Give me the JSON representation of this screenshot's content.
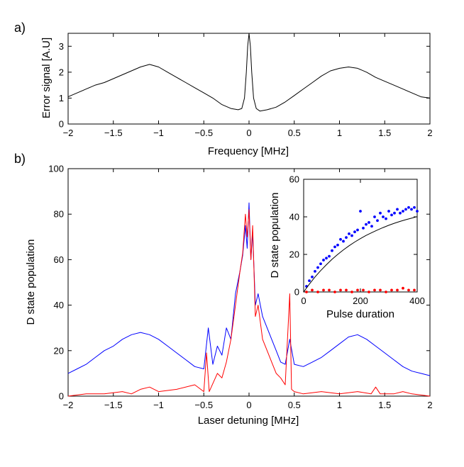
{
  "chart_data": [
    {
      "panel": "a)",
      "type": "line",
      "xlabel": "Frequency [MHz]",
      "ylabel": "Error signal [A.U]",
      "xlim": [
        -2,
        2
      ],
      "ylim": [
        0,
        3.5
      ],
      "xticks": [
        -2,
        -1.5,
        -1,
        -0.5,
        0,
        0.5,
        1,
        1.5,
        2
      ],
      "yticks": [
        0,
        1,
        2,
        3
      ],
      "grid": false,
      "series": [
        {
          "color": "#000000",
          "x": [
            -2.0,
            -1.9,
            -1.8,
            -1.7,
            -1.6,
            -1.5,
            -1.4,
            -1.3,
            -1.2,
            -1.1,
            -1.0,
            -0.9,
            -0.8,
            -0.7,
            -0.6,
            -0.5,
            -0.4,
            -0.3,
            -0.2,
            -0.12,
            -0.08,
            -0.05,
            -0.03,
            -0.015,
            0.0,
            0.015,
            0.03,
            0.05,
            0.08,
            0.12,
            0.2,
            0.3,
            0.4,
            0.5,
            0.6,
            0.7,
            0.8,
            0.9,
            1.0,
            1.1,
            1.2,
            1.3,
            1.4,
            1.5,
            1.6,
            1.7,
            1.8,
            1.9,
            2.0
          ],
          "y": [
            1.05,
            1.2,
            1.35,
            1.5,
            1.6,
            1.75,
            1.9,
            2.05,
            2.2,
            2.3,
            2.2,
            2.0,
            1.8,
            1.6,
            1.4,
            1.2,
            1.0,
            0.75,
            0.6,
            0.55,
            0.6,
            1.0,
            2.0,
            3.0,
            3.5,
            3.0,
            2.0,
            1.0,
            0.6,
            0.5,
            0.55,
            0.65,
            0.85,
            1.1,
            1.35,
            1.6,
            1.85,
            2.05,
            2.15,
            2.2,
            2.15,
            2.0,
            1.8,
            1.65,
            1.5,
            1.35,
            1.2,
            1.05,
            1.0
          ]
        }
      ]
    },
    {
      "panel": "b)",
      "type": "line",
      "xlabel": "Laser detuning [MHz]",
      "ylabel": "D state population",
      "xlim": [
        -2,
        2
      ],
      "ylim": [
        0,
        100
      ],
      "xticks": [
        -2,
        -1.5,
        -1,
        -0.5,
        0,
        0.5,
        1,
        1.5,
        2
      ],
      "yticks": [
        0,
        20,
        40,
        60,
        80,
        100
      ],
      "grid": false,
      "series": [
        {
          "color": "#0000ff",
          "x": [
            -2.0,
            -1.9,
            -1.8,
            -1.7,
            -1.6,
            -1.5,
            -1.4,
            -1.3,
            -1.2,
            -1.1,
            -1.0,
            -0.9,
            -0.8,
            -0.7,
            -0.6,
            -0.5,
            -0.45,
            -0.4,
            -0.35,
            -0.3,
            -0.25,
            -0.2,
            -0.15,
            -0.1,
            -0.07,
            -0.04,
            -0.02,
            0.0,
            0.02,
            0.04,
            0.07,
            0.1,
            0.15,
            0.2,
            0.25,
            0.3,
            0.35,
            0.4,
            0.45,
            0.5,
            0.6,
            0.7,
            0.8,
            0.9,
            1.0,
            1.1,
            1.2,
            1.3,
            1.4,
            1.5,
            1.6,
            1.7,
            1.8,
            1.9,
            2.0
          ],
          "y": [
            10,
            12,
            14,
            17,
            20,
            22,
            25,
            27,
            28,
            27,
            25,
            22,
            19,
            16,
            13,
            12,
            30,
            14,
            22,
            18,
            30,
            25,
            45,
            55,
            62,
            75,
            65,
            85,
            60,
            72,
            40,
            45,
            35,
            30,
            25,
            20,
            15,
            14,
            25,
            14,
            13,
            15,
            17,
            20,
            23,
            26,
            27,
            25,
            22,
            19,
            16,
            13,
            11,
            10,
            9
          ]
        },
        {
          "color": "#ff0000",
          "x": [
            -2.0,
            -1.8,
            -1.6,
            -1.4,
            -1.3,
            -1.2,
            -1.1,
            -1.0,
            -0.8,
            -0.6,
            -0.5,
            -0.47,
            -0.44,
            -0.35,
            -0.3,
            -0.25,
            -0.2,
            -0.15,
            -0.1,
            -0.07,
            -0.04,
            -0.02,
            0.0,
            0.02,
            0.04,
            0.07,
            0.1,
            0.15,
            0.2,
            0.25,
            0.3,
            0.35,
            0.4,
            0.45,
            0.47,
            0.5,
            0.6,
            0.8,
            1.0,
            1.2,
            1.35,
            1.4,
            1.45,
            1.6,
            1.7,
            1.8,
            2.0
          ],
          "y": [
            0,
            1,
            1,
            2,
            1,
            3,
            4,
            2,
            3,
            5,
            2,
            19,
            2,
            10,
            8,
            15,
            25,
            40,
            55,
            63,
            80,
            70,
            82,
            60,
            75,
            35,
            40,
            25,
            20,
            15,
            10,
            8,
            5,
            45,
            3,
            2,
            1,
            2,
            1,
            2,
            1,
            4,
            1,
            1,
            2,
            1,
            0
          ]
        }
      ],
      "inset": {
        "type": "scatter",
        "xlabel": "Pulse duration",
        "ylabel": "D state population",
        "xlim": [
          0,
          400
        ],
        "ylim": [
          0,
          60
        ],
        "xticks": [
          0,
          200,
          400
        ],
        "yticks": [
          0,
          20,
          40,
          60
        ],
        "series": [
          {
            "color": "#0000ff",
            "marker": "dot",
            "x": [
              10,
              20,
              30,
              40,
              50,
              60,
              70,
              80,
              90,
              100,
              110,
              120,
              130,
              140,
              150,
              160,
              170,
              180,
              190,
              200,
              210,
              220,
              230,
              240,
              250,
              260,
              270,
              280,
              290,
              300,
              310,
              320,
              330,
              340,
              350,
              360,
              370,
              380,
              390,
              400
            ],
            "y": [
              3,
              6,
              8,
              11,
              13,
              15,
              17,
              18,
              19,
              22,
              24,
              25,
              28,
              27,
              29,
              31,
              30,
              32,
              33,
              43,
              34,
              36,
              37,
              35,
              40,
              38,
              42,
              40,
              39,
              43,
              41,
              42,
              44,
              42,
              43,
              44,
              45,
              44,
              45,
              43
            ]
          },
          {
            "color": "#000000",
            "marker": "line",
            "x": [
              0,
              20,
              40,
              60,
              80,
              100,
              120,
              140,
              160,
              180,
              200,
              220,
              240,
              260,
              280,
              300,
              320,
              340,
              360,
              380,
              400
            ],
            "y": [
              0,
              4.2,
              8.0,
              11.4,
              14.5,
              17.4,
              20.0,
              22.4,
              24.6,
              26.6,
              28.4,
              30.1,
              31.6,
              33.0,
              34.3,
              35.5,
              36.6,
              37.6,
              38.5,
              39.3,
              40.1
            ]
          },
          {
            "color": "#ff0000",
            "marker": "dot",
            "x": [
              10,
              30,
              50,
              70,
              90,
              110,
              130,
              150,
              170,
              190,
              210,
              230,
              250,
              270,
              290,
              310,
              330,
              350,
              370,
              390
            ],
            "y": [
              0,
              1,
              0,
              1,
              1,
              0,
              1,
              1,
              0,
              1,
              1,
              0,
              1,
              1,
              0,
              1,
              1,
              2,
              1,
              1
            ]
          }
        ]
      }
    }
  ]
}
